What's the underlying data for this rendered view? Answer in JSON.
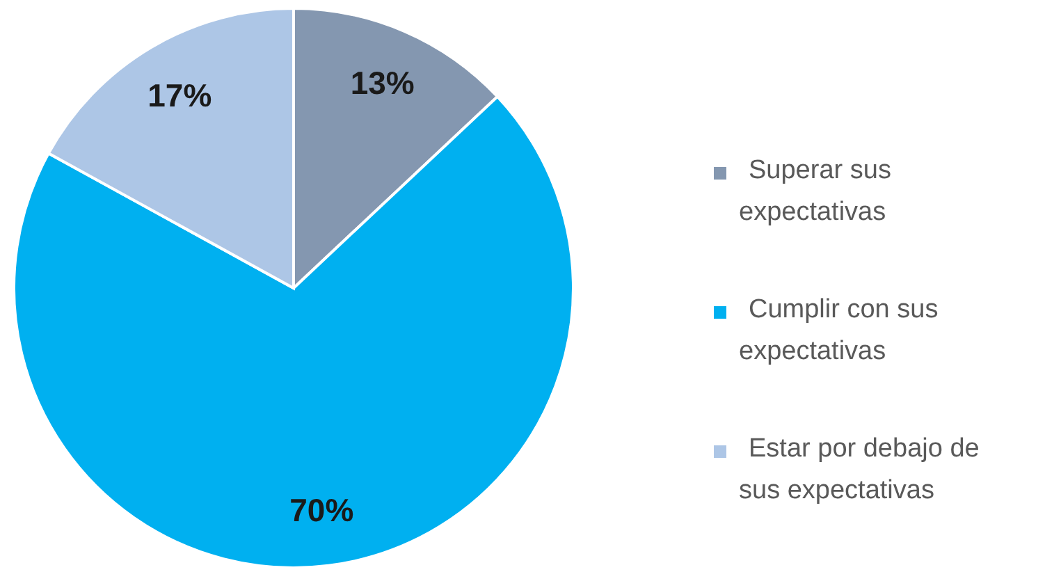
{
  "chart_data": {
    "type": "pie",
    "categories": [
      "Superar sus expectativas",
      "Cumplir con sus expectativas",
      "Estar por debajo de sus expectativas"
    ],
    "values": [
      13,
      70,
      17
    ],
    "colors": [
      "#8497b0",
      "#00b0f0",
      "#adc6e6"
    ],
    "value_labels": [
      "13%",
      "70%",
      "17%"
    ],
    "legend": "right"
  }
}
